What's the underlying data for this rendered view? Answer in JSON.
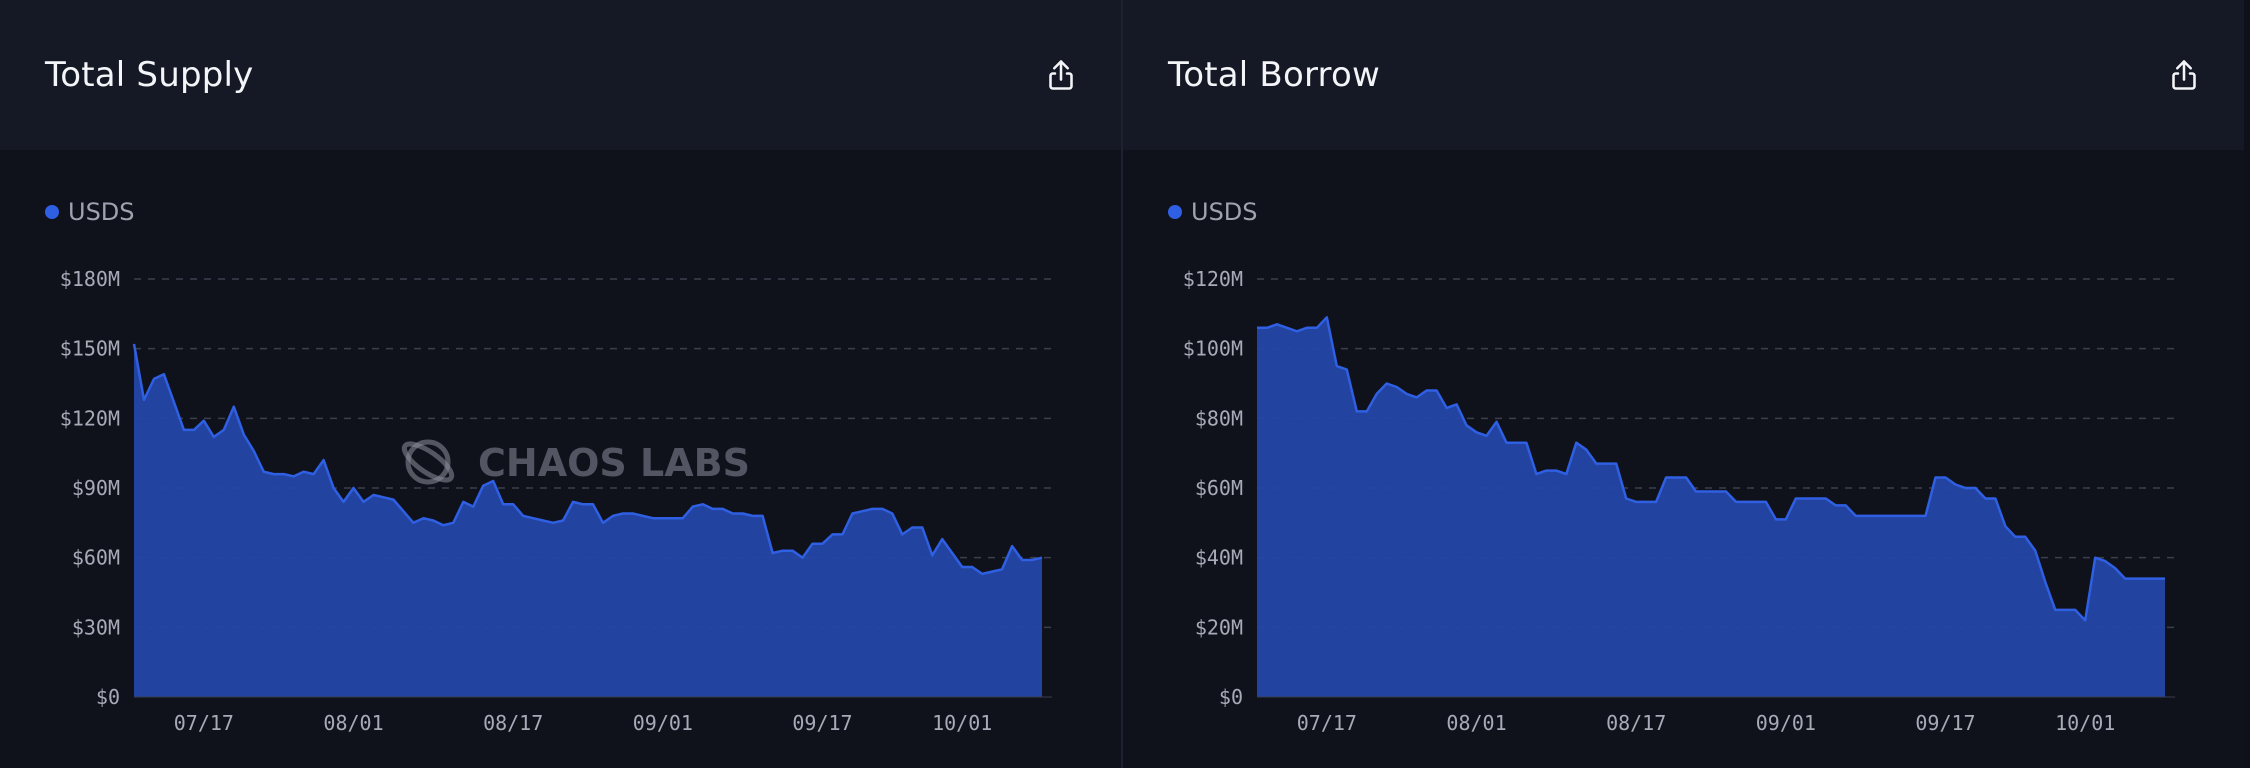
{
  "colors": {
    "series": "#2f5fe3",
    "fill": "#2447a6",
    "grid": "#3a3f4c"
  },
  "panels": [
    {
      "title": "Total Supply",
      "export_icon": "share-upload-icon",
      "watermark": "CHAOS LABS"
    },
    {
      "title": "Total Borrow",
      "export_icon": "share-upload-icon",
      "watermark": "CHAOS LABS"
    }
  ],
  "chart_data": [
    {
      "type": "area",
      "title": "Total Supply",
      "legend": [
        "USDS"
      ],
      "legend_position": "top-left",
      "grid": true,
      "ylim": [
        0,
        180
      ],
      "y_unit": "$M",
      "y_ticks": [
        0,
        30,
        60,
        90,
        120,
        150,
        180
      ],
      "y_tick_labels": [
        "$0",
        "$30M",
        "$60M",
        "$90M",
        "$120M",
        "$150M",
        "$180M"
      ],
      "x_tick_labels": [
        "07/17",
        "08/01",
        "08/17",
        "09/01",
        "09/17",
        "10/01"
      ],
      "x_tick_positions": [
        7,
        22,
        38,
        53,
        69,
        83
      ],
      "x_range": [
        0,
        92
      ],
      "series": [
        {
          "name": "USDS",
          "values": [
            152,
            128,
            137,
            139,
            127,
            115,
            115,
            119,
            112,
            115,
            125,
            113,
            106,
            97,
            96,
            96,
            95,
            97,
            96,
            102,
            90,
            84,
            90,
            84,
            87,
            86,
            85,
            80,
            75,
            77,
            76,
            74,
            75,
            84,
            82,
            91,
            93,
            83,
            83,
            78,
            77,
            76,
            75,
            76,
            84,
            83,
            83,
            75,
            78,
            79,
            79,
            78,
            77,
            77,
            77,
            77,
            82,
            83,
            81,
            81,
            79,
            79,
            78,
            78,
            62,
            63,
            63,
            60,
            66,
            66,
            70,
            70,
            79,
            80,
            81,
            81,
            79,
            70,
            73,
            73,
            61,
            68,
            62,
            56,
            56,
            53,
            54,
            55,
            65,
            59,
            59,
            60
          ]
        }
      ]
    },
    {
      "type": "area",
      "title": "Total Borrow",
      "legend": [
        "USDS"
      ],
      "legend_position": "top-left",
      "grid": true,
      "ylim": [
        0,
        120
      ],
      "y_unit": "$M",
      "y_ticks": [
        0,
        20,
        40,
        60,
        80,
        100,
        120
      ],
      "y_tick_labels": [
        "$0",
        "$20M",
        "$40M",
        "$60M",
        "$80M",
        "$100M",
        "$120M"
      ],
      "x_tick_labels": [
        "07/17",
        "08/01",
        "08/17",
        "09/01",
        "09/17",
        "10/01"
      ],
      "x_tick_positions": [
        7,
        22,
        38,
        53,
        69,
        83
      ],
      "x_range": [
        0,
        92
      ],
      "series": [
        {
          "name": "USDS",
          "values": [
            106,
            106,
            107,
            106,
            105,
            106,
            106,
            109,
            95,
            94,
            82,
            82,
            87,
            90,
            89,
            87,
            86,
            88,
            88,
            83,
            84,
            78,
            76,
            75,
            79,
            73,
            73,
            73,
            64,
            65,
            65,
            64,
            73,
            71,
            67,
            67,
            67,
            57,
            56,
            56,
            56,
            63,
            63,
            63,
            59,
            59,
            59,
            59,
            56,
            56,
            56,
            56,
            51,
            51,
            57,
            57,
            57,
            57,
            55,
            55,
            52,
            52,
            52,
            52,
            52,
            52,
            52,
            52,
            63,
            63,
            61,
            60,
            60,
            57,
            57,
            49,
            46,
            46,
            42,
            33,
            25,
            25,
            25,
            22,
            40,
            39,
            37,
            34,
            34,
            34,
            34,
            34
          ]
        }
      ]
    }
  ]
}
